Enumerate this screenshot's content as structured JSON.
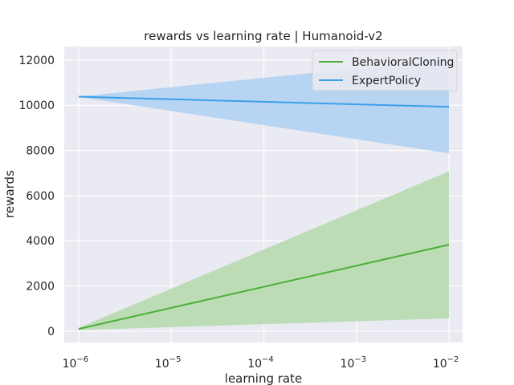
{
  "chart_data": {
    "type": "line",
    "title": "rewards vs learning rate | Humanoid-v2",
    "xlabel": "learning rate",
    "ylabel": "rewards",
    "x_scale": "log",
    "x": [
      1e-06,
      0.01
    ],
    "xlim": [
      7e-07,
      0.014
    ],
    "ylim": [
      -500,
      12600
    ],
    "x_ticks": [
      {
        "value": 1e-06,
        "base": "10",
        "exp": "−6"
      },
      {
        "value": 1e-05,
        "base": "10",
        "exp": "−5"
      },
      {
        "value": 0.0001,
        "base": "10",
        "exp": "−4"
      },
      {
        "value": 0.001,
        "base": "10",
        "exp": "−3"
      },
      {
        "value": 0.01,
        "base": "10",
        "exp": "−2"
      }
    ],
    "y_ticks": [
      0,
      2000,
      4000,
      6000,
      8000,
      10000,
      12000
    ],
    "grid": true,
    "legend_position": "top-right",
    "series": [
      {
        "name": "BehavioralCloning",
        "color": "#4daf3a",
        "band_color": "#b9dbb2",
        "values": [
          100,
          3830
        ],
        "lower": [
          50,
          570
        ],
        "upper": [
          150,
          7080
        ]
      },
      {
        "name": "ExpertPolicy",
        "color": "#3aa0e8",
        "band_color": "#b4d3f1",
        "values": [
          10380,
          9930
        ],
        "lower": [
          10370,
          7870
        ],
        "upper": [
          10390,
          12040
        ]
      }
    ]
  }
}
